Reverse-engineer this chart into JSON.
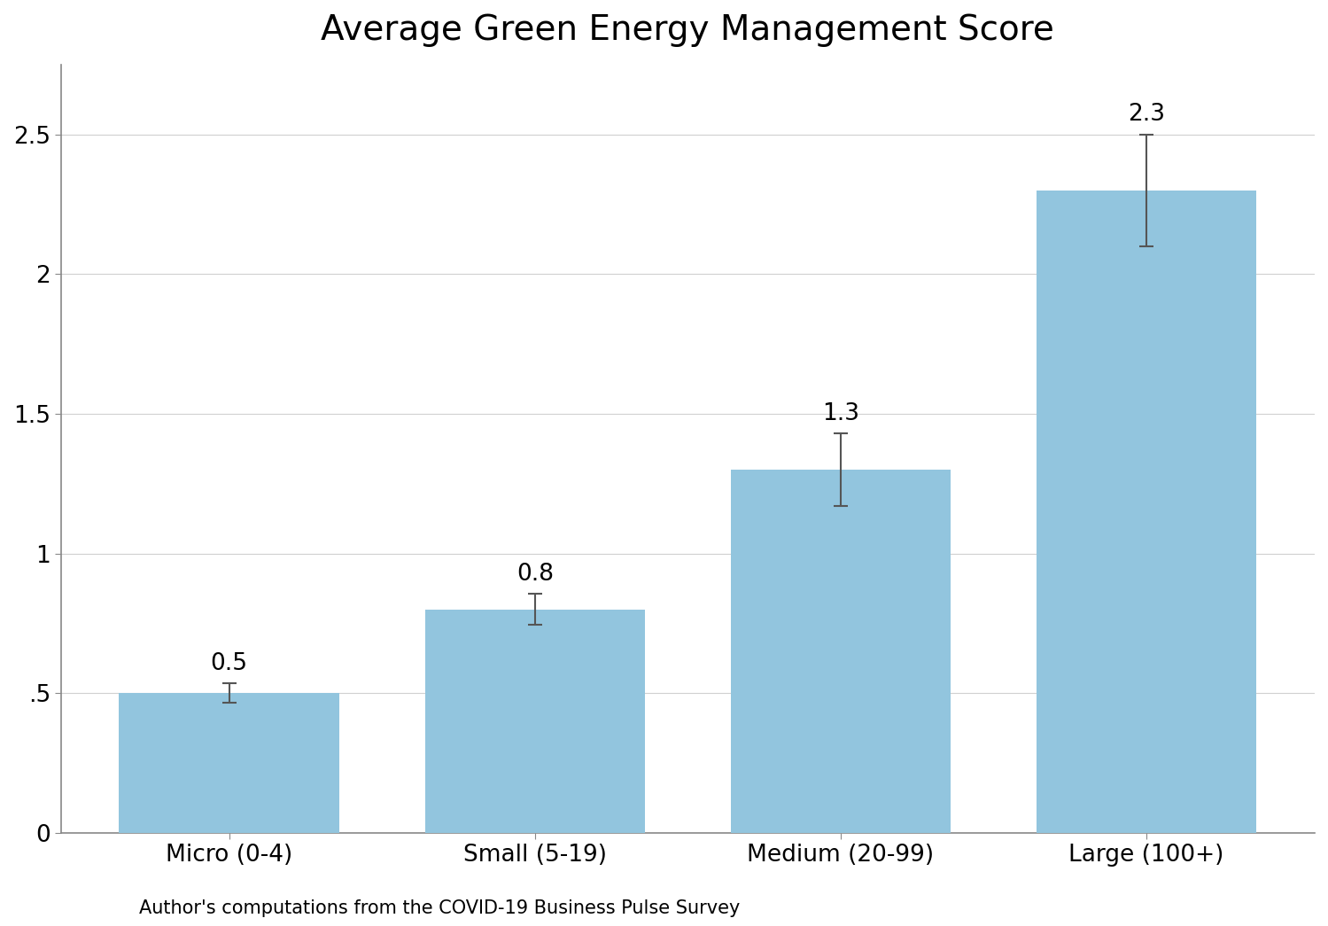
{
  "title": "Average Green Energy Management Score",
  "categories": [
    "Micro (0-4)",
    "Small (5-19)",
    "Medium (20-99)",
    "Large (100+)"
  ],
  "values": [
    0.5,
    0.8,
    1.3,
    2.3
  ],
  "errors": [
    0.035,
    0.055,
    0.13,
    0.2
  ],
  "bar_color": "#92C5DE",
  "error_color": "#555555",
  "label_values": [
    "0.5",
    "0.8",
    "1.3",
    "2.3"
  ],
  "yticks": [
    0,
    0.5,
    1.0,
    1.5,
    2.0,
    2.5
  ],
  "ytick_labels": [
    "0",
    ".5",
    "1",
    "1.5",
    "2",
    "2.5"
  ],
  "ylim": [
    0,
    2.75
  ],
  "footnote": "Author's computations from the COVID-19 Business Pulse Survey",
  "title_fontsize": 28,
  "label_fontsize": 19,
  "tick_fontsize": 19,
  "footnote_fontsize": 15,
  "annotation_fontsize": 19,
  "background_color": "#ffffff",
  "grid_color": "#d0d0d0",
  "spine_color": "#888888"
}
